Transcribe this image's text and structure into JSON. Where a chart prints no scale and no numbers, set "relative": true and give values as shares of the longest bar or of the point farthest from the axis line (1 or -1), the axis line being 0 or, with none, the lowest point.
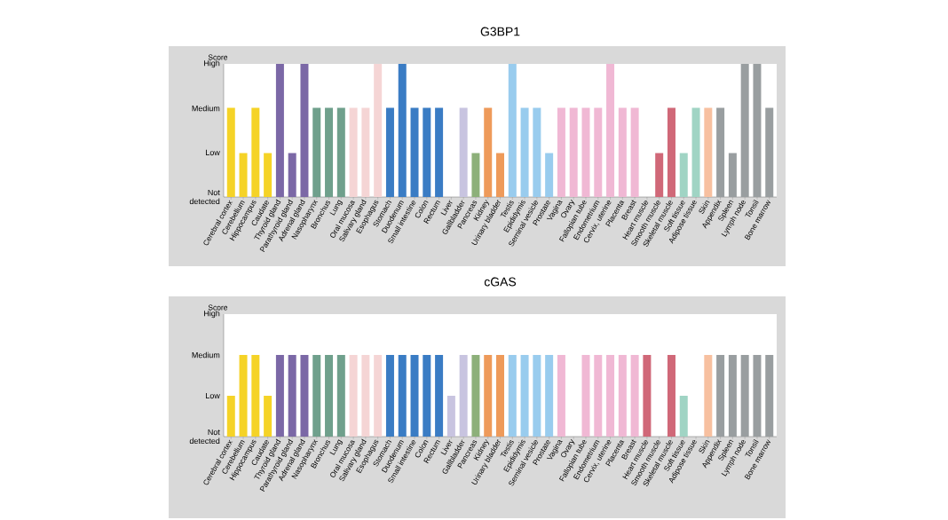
{
  "chart_data": [
    {
      "type": "bar",
      "title": "G3BP1",
      "ylabel": "Score",
      "categories": [
        "Cerebral cortex",
        "Cerebellum",
        "Hippocampus",
        "Caudate",
        "Thyroid gland",
        "Parathyroid gland",
        "Adrenal gland",
        "Nasopharynx",
        "Bronchus",
        "Lung",
        "Oral mucosa",
        "Salivary gland",
        "Esophagus",
        "Stomach",
        "Duodenum",
        "Small intestine",
        "Colon",
        "Rectum",
        "Liver",
        "Gallbladder",
        "Pancreas",
        "Kidney",
        "Urinary bladder",
        "Testis",
        "Epididymis",
        "Seminal vesicle",
        "Prostate",
        "Vagina",
        "Ovary",
        "Fallopian tube",
        "Endometrium",
        "Cervix, uterine",
        "Placenta",
        "Breast",
        "Heart muscle",
        "Smooth muscle",
        "Skeletal muscle",
        "Soft tissue",
        "Adipose tissue",
        "Skin",
        "Appendix",
        "Spleen",
        "Lymph node",
        "Tonsil",
        "Bone marrow"
      ],
      "values": [
        0.67,
        0.33,
        0.67,
        0.33,
        1,
        0.33,
        1,
        0.67,
        0.67,
        0.67,
        0.67,
        0.67,
        1,
        0.67,
        1,
        0.67,
        0.67,
        0.67,
        0,
        0.67,
        0.33,
        0.67,
        0.33,
        1,
        0.67,
        0.67,
        0.33,
        0.67,
        0.67,
        0.67,
        0.67,
        1,
        0.67,
        0.67,
        0,
        0.33,
        0.67,
        0.33,
        0.67,
        0.67,
        0.67,
        0.33,
        1,
        1,
        0.67
      ],
      "colors": [
        "#f5d327",
        "#f5d327",
        "#f5d327",
        "#f5d327",
        "#7b68a6",
        "#7b68a6",
        "#7b68a6",
        "#6fa08c",
        "#6fa08c",
        "#6fa08c",
        "#f5d5d5",
        "#f5d5d5",
        "#f5d5d5",
        "#3a7cc4",
        "#3a7cc4",
        "#3a7cc4",
        "#3a7cc4",
        "#3a7cc4",
        "#c8c4e0",
        "#c8c4e0",
        "#8db07a",
        "#ee9a5a",
        "#ee9a5a",
        "#99ccee",
        "#99ccee",
        "#99ccee",
        "#99ccee",
        "#f0b8d4",
        "#f0b8d4",
        "#f0b8d4",
        "#f0b8d4",
        "#f0b8d4",
        "#f0b8d4",
        "#f0b8d4",
        "#d06878",
        "#d06878",
        "#d06878",
        "#a0d4c4",
        "#a0d4c4",
        "#f7c0a0",
        "#999ea0",
        "#999ea0",
        "#999ea0",
        "#999ea0",
        "#999ea0"
      ],
      "relative": true,
      "annotations": [
        "Not detected",
        "Low",
        "Medium",
        "High"
      ],
      "grid": false
    },
    {
      "type": "bar",
      "title": "cGAS",
      "ylabel": "Score",
      "categories": [
        "Cerebral cortex",
        "Cerebellum",
        "Hippocampus",
        "Caudate",
        "Thyroid gland",
        "Parathyroid gland",
        "Adrenal gland",
        "Nasopharynx",
        "Bronchus",
        "Lung",
        "Oral mucosa",
        "Salivary gland",
        "Esophagus",
        "Stomach",
        "Duodenum",
        "Small intestine",
        "Colon",
        "Rectum",
        "Liver",
        "Gallbladder",
        "Pancreas",
        "Kidney",
        "Urinary bladder",
        "Testis",
        "Epididymis",
        "Seminal vesicle",
        "Prostate",
        "Vagina",
        "Ovary",
        "Fallopian tube",
        "Endometrium",
        "Cervix, uterine",
        "Placenta",
        "Breast",
        "Heart muscle",
        "Smooth muscle",
        "Skeletal muscle",
        "Soft tissue",
        "Adipose tissue",
        "Skin",
        "Appendix",
        "Spleen",
        "Lymph node",
        "Tonsil",
        "Bone marrow"
      ],
      "values": [
        0.5,
        1,
        1,
        0.5,
        1,
        1,
        1,
        1,
        1,
        1,
        1,
        1,
        1,
        1,
        1,
        1,
        1,
        1,
        0.5,
        1,
        1,
        1,
        1,
        1,
        1,
        1,
        1,
        1,
        0,
        1,
        1,
        1,
        1,
        1,
        1,
        0,
        1,
        0.5,
        0,
        1,
        1,
        1,
        1,
        1,
        1
      ],
      "colors": [
        "#f5d327",
        "#f5d327",
        "#f5d327",
        "#f5d327",
        "#7b68a6",
        "#7b68a6",
        "#7b68a6",
        "#6fa08c",
        "#6fa08c",
        "#6fa08c",
        "#f5d5d5",
        "#f5d5d5",
        "#f5d5d5",
        "#3a7cc4",
        "#3a7cc4",
        "#3a7cc4",
        "#3a7cc4",
        "#3a7cc4",
        "#c8c4e0",
        "#c8c4e0",
        "#8db07a",
        "#ee9a5a",
        "#ee9a5a",
        "#99ccee",
        "#99ccee",
        "#99ccee",
        "#99ccee",
        "#f0b8d4",
        "#f0b8d4",
        "#f0b8d4",
        "#f0b8d4",
        "#f0b8d4",
        "#f0b8d4",
        "#f0b8d4",
        "#d06878",
        "#d06878",
        "#d06878",
        "#a0d4c4",
        "#a0d4c4",
        "#f7c0a0",
        "#999ea0",
        "#999ea0",
        "#999ea0",
        "#999ea0",
        "#999ea0"
      ],
      "relative": true,
      "annotations": [
        "Not detected",
        "Low",
        "Medium",
        "High"
      ],
      "grid": false
    }
  ]
}
